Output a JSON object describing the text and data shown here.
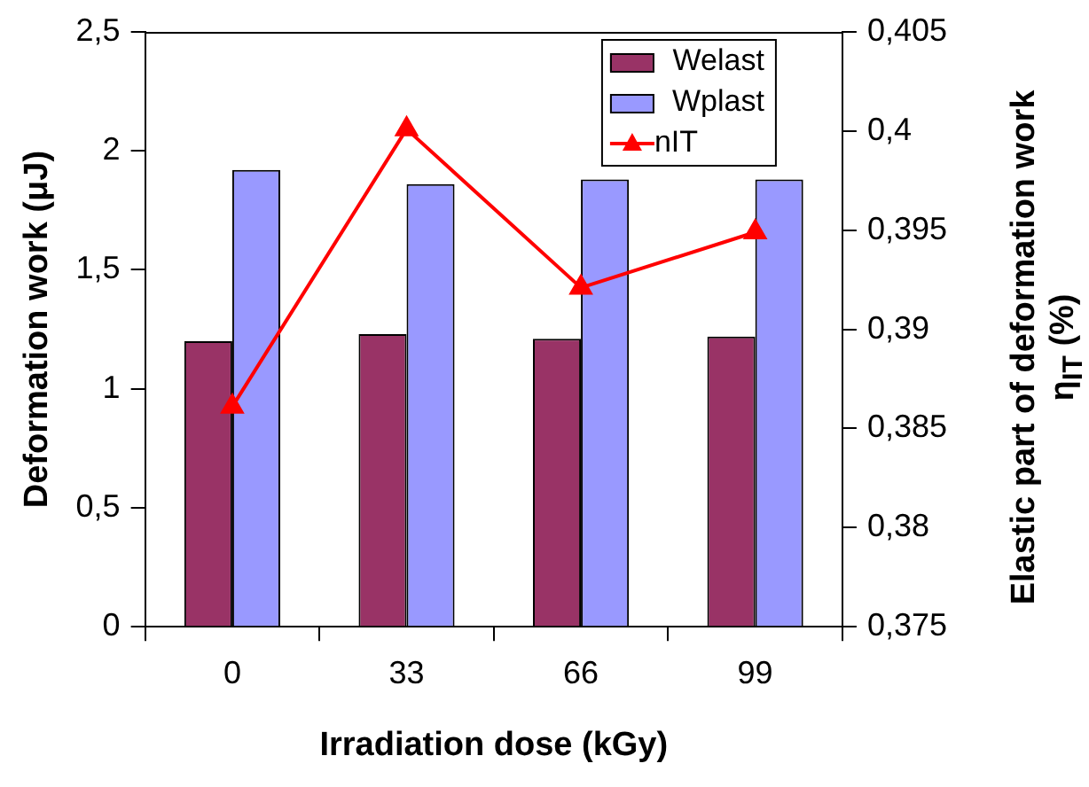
{
  "chart_data": {
    "type": "bar",
    "xlabel": "Irradiation dose (kGy)",
    "ylabel": "Deformation work (μJ)",
    "y2label": "Elastic part of deformation work η$_{IT}$ (%)",
    "categories": [
      "0",
      "33",
      "66",
      "99"
    ],
    "series": [
      {
        "name": "Welast",
        "color": "#993366",
        "values": [
          1.2,
          1.23,
          1.21,
          1.22
        ]
      },
      {
        "name": "Wplast",
        "color": "#9999ff",
        "values": [
          1.92,
          1.86,
          1.88,
          1.88
        ]
      },
      {
        "name": "nIT",
        "type": "line",
        "axis": "y2",
        "color": "#ff0000",
        "marker": "triangle",
        "values": [
          0.3861,
          0.4001,
          0.3921,
          0.3949
        ]
      }
    ],
    "ylim": [
      0,
      2.5
    ],
    "yticks": [
      0,
      {
        "value": 0.5,
        "label": "0,5"
      },
      1,
      {
        "value": 1.5,
        "label": "1,5"
      },
      2,
      {
        "value": 2.5,
        "label": "2,5"
      }
    ],
    "y2lim": [
      0.375,
      0.405
    ],
    "y2ticks": [
      {
        "value": 0.375,
        "label": "0,375"
      },
      {
        "value": 0.38,
        "label": "0,38"
      },
      {
        "value": 0.385,
        "label": "0,385"
      },
      {
        "value": 0.39,
        "label": "0,39"
      },
      {
        "value": 0.395,
        "label": "0,395"
      },
      {
        "value": 0.4,
        "label": "0,4"
      },
      {
        "value": 0.405,
        "label": "0,405"
      }
    ],
    "grid": false,
    "legend": "top right"
  }
}
